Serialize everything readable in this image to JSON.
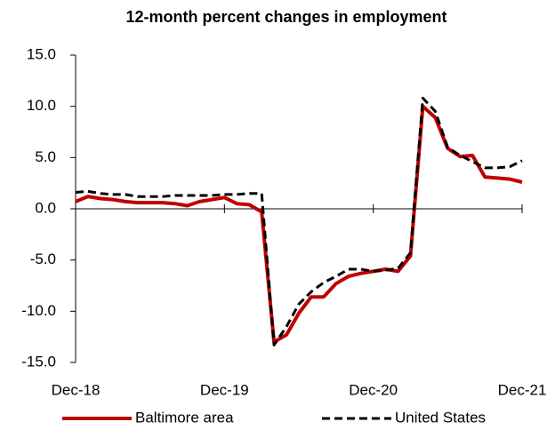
{
  "chart_data": {
    "type": "line",
    "title": "12-month percent changes in employment",
    "categories": [
      "Dec-18",
      null,
      null,
      null,
      null,
      null,
      null,
      null,
      null,
      null,
      null,
      null,
      "Dec-19",
      null,
      null,
      null,
      null,
      null,
      null,
      null,
      null,
      null,
      null,
      null,
      "Dec-20",
      null,
      null,
      null,
      null,
      null,
      null,
      null,
      null,
      null,
      null,
      null,
      "Dec-21"
    ],
    "series": [
      {
        "name": "Baltimore area",
        "color": "#c00000",
        "dash": false,
        "values": [
          0.7,
          1.2,
          1.0,
          0.9,
          0.7,
          0.6,
          0.6,
          0.6,
          0.5,
          0.3,
          0.7,
          0.9,
          1.1,
          0.5,
          0.4,
          -0.3,
          -13.0,
          -12.3,
          -10.2,
          -8.6,
          -8.6,
          -7.3,
          -6.6,
          -6.3,
          -6.1,
          -5.9,
          -6.1,
          -4.6,
          10.0,
          8.9,
          5.9,
          5.1,
          5.2,
          3.1,
          3.0,
          2.9,
          2.6
        ]
      },
      {
        "name": "United States",
        "color": "#000000",
        "dash": true,
        "values": [
          1.6,
          1.7,
          1.5,
          1.4,
          1.4,
          1.2,
          1.2,
          1.2,
          1.3,
          1.3,
          1.3,
          1.3,
          1.4,
          1.4,
          1.5,
          1.5,
          -13.3,
          -11.5,
          -9.3,
          -8.1,
          -7.2,
          -6.6,
          -5.9,
          -5.9,
          -6.1,
          -6.0,
          -5.8,
          -4.3,
          10.8,
          9.5,
          6.0,
          5.2,
          4.6,
          4.0,
          4.0,
          4.1,
          4.7
        ]
      }
    ],
    "ylim": [
      -15,
      15
    ],
    "yticks": [
      {
        "value": -15,
        "label": "-15.0"
      },
      {
        "value": -10,
        "label": "-10.0"
      },
      {
        "value": -5,
        "label": "-5.0"
      },
      {
        "value": 0,
        "label": "0.0"
      },
      {
        "value": 5,
        "label": "5.0"
      },
      {
        "value": 10,
        "label": "10.0"
      },
      {
        "value": 15,
        "label": "15.0"
      }
    ],
    "grid": false,
    "legend": "bottom"
  }
}
